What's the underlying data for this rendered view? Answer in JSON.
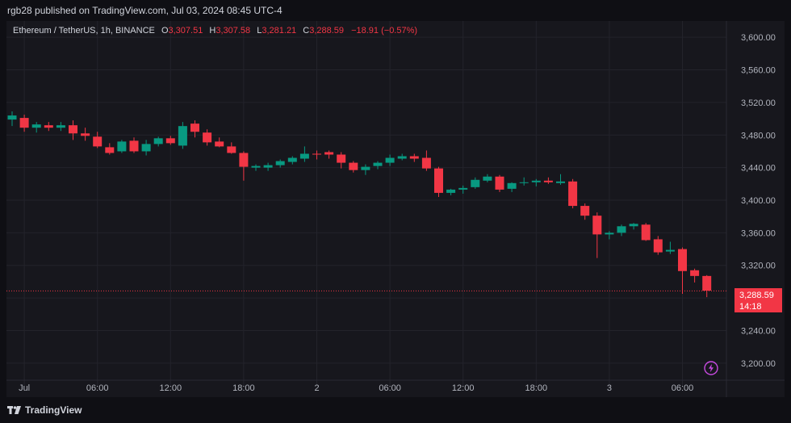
{
  "header": {
    "publisher_text": "rgb28 published on TradingView.com, Jul 03, 2024 08:45 UTC-4"
  },
  "legend": {
    "symbol": "Ethereum / TetherUS, 1h, BINANCE",
    "open_key": "O",
    "open": "3,307.51",
    "high_key": "H",
    "high": "3,307.58",
    "low_key": "L",
    "low": "3,281.21",
    "close_key": "C",
    "close": "3,288.59",
    "change": "−18.91 (−0.57%)"
  },
  "price_tag": {
    "price": "3,288.59",
    "countdown": "14:18"
  },
  "footer": {
    "brand": "TradingView"
  },
  "colors": {
    "up": "#089981",
    "down": "#f23645",
    "grid": "#23232b",
    "background": "#17171d",
    "text": "#b2b5be"
  },
  "icons": {
    "footer_logo": "tradingview-logo-icon",
    "replay": "lightning-icon"
  },
  "chart_data": {
    "type": "candlestick",
    "title": "Ethereum / TetherUS, 1h, BINANCE",
    "ylim": [
      3180,
      3620
    ],
    "y_ticks": [
      "3,600.00",
      "3,560.00",
      "3,520.00",
      "3,480.00",
      "3,440.00",
      "3,400.00",
      "3,360.00",
      "3,320.00",
      "3,280.00",
      "3,240.00",
      "3,200.00"
    ],
    "y_tick_values": [
      3600,
      3560,
      3520,
      3480,
      3440,
      3400,
      3360,
      3320,
      3280,
      3240,
      3200
    ],
    "x_ticks": [
      "Jul",
      "06:00",
      "12:00",
      "18:00",
      "2",
      "06:00",
      "12:00",
      "18:00",
      "3",
      "06:00"
    ],
    "x_tick_index": [
      1,
      7,
      13,
      19,
      25,
      31,
      37,
      43,
      49,
      55
    ],
    "current_price": 3288.59,
    "grid": true,
    "candles": [
      {
        "o": 3499,
        "h": 3509,
        "l": 3491,
        "c": 3504
      },
      {
        "o": 3501,
        "h": 3505,
        "l": 3484,
        "c": 3489
      },
      {
        "o": 3489,
        "h": 3496,
        "l": 3483,
        "c": 3493
      },
      {
        "o": 3492,
        "h": 3496,
        "l": 3485,
        "c": 3489
      },
      {
        "o": 3489,
        "h": 3496,
        "l": 3485,
        "c": 3492
      },
      {
        "o": 3492,
        "h": 3498,
        "l": 3474,
        "c": 3482
      },
      {
        "o": 3482,
        "h": 3489,
        "l": 3473,
        "c": 3479
      },
      {
        "o": 3478,
        "h": 3484,
        "l": 3464,
        "c": 3466
      },
      {
        "o": 3465,
        "h": 3470,
        "l": 3456,
        "c": 3458
      },
      {
        "o": 3460,
        "h": 3474,
        "l": 3458,
        "c": 3472
      },
      {
        "o": 3473,
        "h": 3477,
        "l": 3458,
        "c": 3460
      },
      {
        "o": 3460,
        "h": 3474,
        "l": 3455,
        "c": 3469
      },
      {
        "o": 3469,
        "h": 3478,
        "l": 3466,
        "c": 3476
      },
      {
        "o": 3476,
        "h": 3479,
        "l": 3468,
        "c": 3470
      },
      {
        "o": 3467,
        "h": 3496,
        "l": 3463,
        "c": 3491
      },
      {
        "o": 3494,
        "h": 3498,
        "l": 3477,
        "c": 3484
      },
      {
        "o": 3483,
        "h": 3487,
        "l": 3467,
        "c": 3471
      },
      {
        "o": 3472,
        "h": 3477,
        "l": 3465,
        "c": 3466
      },
      {
        "o": 3466,
        "h": 3471,
        "l": 3457,
        "c": 3458
      },
      {
        "o": 3458,
        "h": 3460,
        "l": 3424,
        "c": 3441
      },
      {
        "o": 3440,
        "h": 3444,
        "l": 3436,
        "c": 3442
      },
      {
        "o": 3440,
        "h": 3446,
        "l": 3436,
        "c": 3443
      },
      {
        "o": 3443,
        "h": 3450,
        "l": 3440,
        "c": 3448
      },
      {
        "o": 3447,
        "h": 3454,
        "l": 3444,
        "c": 3452
      },
      {
        "o": 3451,
        "h": 3466,
        "l": 3447,
        "c": 3457
      },
      {
        "o": 3457,
        "h": 3461,
        "l": 3450,
        "c": 3456
      },
      {
        "o": 3459,
        "h": 3461,
        "l": 3451,
        "c": 3456
      },
      {
        "o": 3456,
        "h": 3459,
        "l": 3439,
        "c": 3446
      },
      {
        "o": 3446,
        "h": 3448,
        "l": 3434,
        "c": 3437
      },
      {
        "o": 3437,
        "h": 3444,
        "l": 3431,
        "c": 3441
      },
      {
        "o": 3442,
        "h": 3448,
        "l": 3438,
        "c": 3446
      },
      {
        "o": 3446,
        "h": 3456,
        "l": 3442,
        "c": 3452
      },
      {
        "o": 3451,
        "h": 3457,
        "l": 3449,
        "c": 3454
      },
      {
        "o": 3454,
        "h": 3457,
        "l": 3447,
        "c": 3451
      },
      {
        "o": 3452,
        "h": 3461,
        "l": 3436,
        "c": 3439
      },
      {
        "o": 3439,
        "h": 3441,
        "l": 3404,
        "c": 3409
      },
      {
        "o": 3409,
        "h": 3414,
        "l": 3406,
        "c": 3413
      },
      {
        "o": 3413,
        "h": 3418,
        "l": 3408,
        "c": 3415
      },
      {
        "o": 3416,
        "h": 3428,
        "l": 3414,
        "c": 3425
      },
      {
        "o": 3424,
        "h": 3432,
        "l": 3422,
        "c": 3429
      },
      {
        "o": 3429,
        "h": 3431,
        "l": 3410,
        "c": 3413
      },
      {
        "o": 3414,
        "h": 3422,
        "l": 3410,
        "c": 3421
      },
      {
        "o": 3421,
        "h": 3428,
        "l": 3418,
        "c": 3422
      },
      {
        "o": 3422,
        "h": 3426,
        "l": 3417,
        "c": 3424
      },
      {
        "o": 3424,
        "h": 3428,
        "l": 3420,
        "c": 3422
      },
      {
        "o": 3421,
        "h": 3432,
        "l": 3419,
        "c": 3423
      },
      {
        "o": 3423,
        "h": 3426,
        "l": 3390,
        "c": 3393
      },
      {
        "o": 3393,
        "h": 3396,
        "l": 3376,
        "c": 3381
      },
      {
        "o": 3381,
        "h": 3385,
        "l": 3329,
        "c": 3358
      },
      {
        "o": 3358,
        "h": 3362,
        "l": 3352,
        "c": 3360
      },
      {
        "o": 3360,
        "h": 3370,
        "l": 3356,
        "c": 3368
      },
      {
        "o": 3368,
        "h": 3372,
        "l": 3364,
        "c": 3371
      },
      {
        "o": 3370,
        "h": 3372,
        "l": 3350,
        "c": 3351
      },
      {
        "o": 3352,
        "h": 3356,
        "l": 3333,
        "c": 3336
      },
      {
        "o": 3337,
        "h": 3349,
        "l": 3334,
        "c": 3339
      },
      {
        "o": 3340,
        "h": 3342,
        "l": 3285,
        "c": 3313
      },
      {
        "o": 3314,
        "h": 3316,
        "l": 3299,
        "c": 3307
      },
      {
        "o": 3307,
        "h": 3308,
        "l": 3281,
        "c": 3289
      }
    ]
  }
}
